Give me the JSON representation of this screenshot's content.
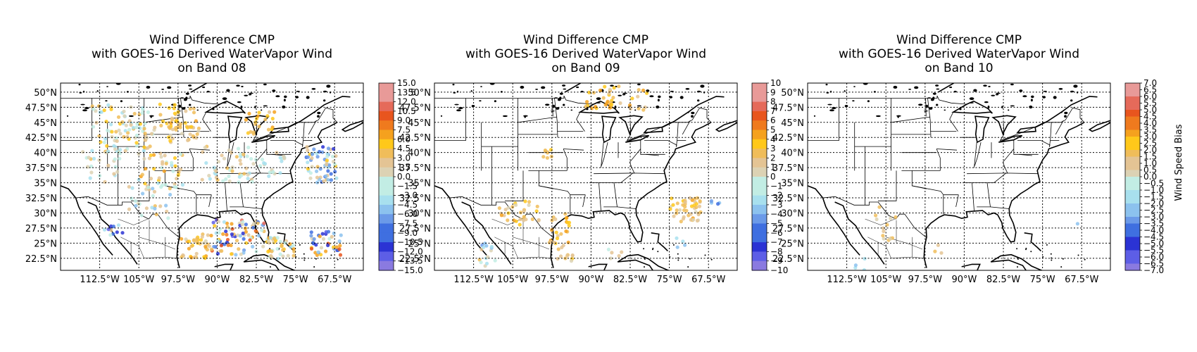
{
  "figure": {
    "colorbar_label": "Wind Speed Bias",
    "colors": {
      "negative": [
        "#8a7ae0",
        "#5d5ee6",
        "#2b33d4",
        "#3f6fe0",
        "#6b9ae8",
        "#8cc2ee",
        "#a8e0ee",
        "#c2ede4"
      ],
      "positive": [
        "#dcd2b4",
        "#e4c494",
        "#f0bd5a",
        "#ffc81a",
        "#f5a11e",
        "#ef7a1e",
        "#e8551e",
        "#e56a5a",
        "#e89a98"
      ]
    }
  },
  "panels": [
    {
      "title_lines": [
        "Wind Difference CMP",
        "with GOES-16 Derived WaterVapor Wind",
        "on Band 08"
      ],
      "colorbar_ticks": [
        "15.0",
        "13.5",
        "12.0",
        "10.5",
        "9.0",
        "7.5",
        "6.0",
        "4.5",
        "3.0",
        "1.5",
        "0.0",
        "−1.5",
        "−3.0",
        "−4.5",
        "−6.0",
        "−7.5",
        "−9.0",
        "−10.5",
        "−12.0",
        "−13.5",
        "−15.0"
      ],
      "colorbar_range": [
        -15,
        15
      ]
    },
    {
      "title_lines": [
        "Wind Difference CMP",
        "with GOES-16 Derived WaterVapor Wind",
        "on Band 09"
      ],
      "colorbar_ticks": [
        "10",
        "9",
        "8",
        "7",
        "6",
        "5",
        "4",
        "3",
        "2",
        "1",
        "0",
        "−1",
        "−2",
        "−3",
        "−4",
        "−5",
        "−6",
        "−7",
        "−8",
        "−9",
        "−10"
      ],
      "colorbar_range": [
        -10,
        10
      ]
    },
    {
      "title_lines": [
        "Wind Difference CMP",
        "with GOES-16 Derived WaterVapor Wind",
        "on Band 10"
      ],
      "colorbar_ticks": [
        "7.0",
        "6.5",
        "6.0",
        "5.5",
        "5.0",
        "4.5",
        "4.0",
        "3.5",
        "3.0",
        "2.5",
        "2.0",
        "1.5",
        "1.0",
        "0.5",
        "0.0",
        "−0.5",
        "−1.0",
        "−1.5",
        "−2.0",
        "−2.5",
        "−3.0",
        "−3.5",
        "−4.0",
        "−4.5",
        "−5.0",
        "−5.5",
        "−6.0",
        "−6.5",
        "−7.0"
      ],
      "colorbar_range": [
        -7,
        7
      ]
    }
  ],
  "axes": {
    "lat_ticks": [
      "50°N",
      "47.5°N",
      "45°N",
      "42.5°N",
      "40°N",
      "37.5°N",
      "35°N",
      "32.5°N",
      "30°N",
      "27.5°N",
      "25°N",
      "22.5°N"
    ],
    "lon_ticks": [
      "112.5°W",
      "105°W",
      "97.5°W",
      "90°W",
      "82.5°W",
      "75°W",
      "67.5°W"
    ],
    "lon_values": [
      -112.5,
      -105,
      -97.5,
      -90,
      -82.5,
      -75,
      -67.5
    ],
    "lat_values": [
      50,
      47.5,
      45,
      42.5,
      40,
      37.5,
      35,
      32.5,
      30,
      27.5,
      25,
      22.5
    ],
    "lon_range": [
      -120,
      -62
    ],
    "lat_range": [
      20.5,
      51.5
    ]
  }
}
